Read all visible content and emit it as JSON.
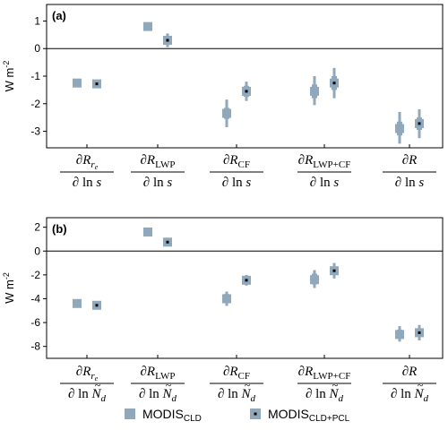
{
  "chart_data": [
    {
      "type": "scatter",
      "panel_label": "(a)",
      "ylabel": "W m",
      "ylabel_sup": "-2",
      "ylim": [
        -3.6,
        1.6
      ],
      "yticks": [
        1,
        0,
        -1,
        -2,
        -3
      ],
      "ytick_labels": [
        "1",
        "0",
        "-1",
        "-2",
        "-3"
      ],
      "zero_line": true,
      "categories": [
        {
          "num_sym": "∂R",
          "num_sub": "r",
          "num_sub2": "e",
          "den_pre": "∂ ln ",
          "den_var": "s",
          "den_tilde": false
        },
        {
          "num_sym": "∂R",
          "num_sub": "LWP",
          "num_sub2": "",
          "den_pre": "∂ ln ",
          "den_var": "s",
          "den_tilde": false
        },
        {
          "num_sym": "∂R",
          "num_sub": "CF",
          "num_sub2": "",
          "den_pre": "∂ ln ",
          "den_var": "s",
          "den_tilde": false
        },
        {
          "num_sym": "∂R",
          "num_sub": "LWP+CF",
          "num_sub2": "",
          "den_pre": "∂ ln ",
          "den_var": "s",
          "den_tilde": false
        },
        {
          "num_sym": "∂R",
          "num_sub": "",
          "num_sub2": "",
          "den_pre": "∂ ln ",
          "den_var": "s",
          "den_tilde": false
        }
      ],
      "series": [
        {
          "name": "MODIS_CLD",
          "values": [
            -1.25,
            0.8,
            -2.35,
            -1.55,
            -2.9
          ],
          "range_thick": [
            [
              -1.25,
              -1.25
            ],
            [
              0.8,
              0.8
            ],
            [
              -2.55,
              -2.15
            ],
            [
              -1.8,
              -1.3
            ],
            [
              -3.15,
              -2.65
            ]
          ],
          "range_thin": [
            [
              -1.25,
              -1.25
            ],
            [
              0.8,
              0.8
            ],
            [
              -2.85,
              -1.85
            ],
            [
              -2.05,
              -1.0
            ],
            [
              -3.45,
              -2.3
            ]
          ]
        },
        {
          "name": "MODIS_CLD+PCL",
          "values": [
            -1.28,
            0.3,
            -1.55,
            -1.25,
            -2.72
          ],
          "range_thick": [
            [
              -1.28,
              -1.28
            ],
            [
              0.15,
              0.45
            ],
            [
              -1.75,
              -1.35
            ],
            [
              -1.5,
              -1.0
            ],
            [
              -2.95,
              -2.5
            ]
          ],
          "range_thin": [
            [
              -1.28,
              -1.28
            ],
            [
              0.05,
              0.55
            ],
            [
              -1.9,
              -1.2
            ],
            [
              -1.8,
              -0.7
            ],
            [
              -3.25,
              -2.2
            ]
          ]
        }
      ]
    },
    {
      "type": "scatter",
      "panel_label": "(b)",
      "ylabel": "W m",
      "ylabel_sup": "-2",
      "ylim": [
        -9,
        2.8
      ],
      "yticks": [
        2,
        0,
        -2,
        -4,
        -6,
        -8
      ],
      "ytick_labels": [
        "2",
        "0",
        "-2",
        "-4",
        "-6",
        "-8"
      ],
      "zero_line": true,
      "categories": [
        {
          "num_sym": "∂R",
          "num_sub": "r",
          "num_sub2": "e",
          "den_pre": "∂ ln ",
          "den_var": "N",
          "den_sub": "d",
          "den_tilde": true
        },
        {
          "num_sym": "∂R",
          "num_sub": "LWP",
          "num_sub2": "",
          "den_pre": "∂ ln ",
          "den_var": "N",
          "den_sub": "d",
          "den_tilde": true
        },
        {
          "num_sym": "∂R",
          "num_sub": "CF",
          "num_sub2": "",
          "den_pre": "∂ ln ",
          "den_var": "N",
          "den_sub": "d",
          "den_tilde": true
        },
        {
          "num_sym": "∂R",
          "num_sub": "LWP+CF",
          "num_sub2": "",
          "den_pre": "∂ ln ",
          "den_var": "N",
          "den_sub": "d",
          "den_tilde": true
        },
        {
          "num_sym": "∂R",
          "num_sub": "",
          "num_sub2": "",
          "den_pre": "∂ ln ",
          "den_var": "N",
          "den_sub": "d",
          "den_tilde": true
        }
      ],
      "series": [
        {
          "name": "MODIS_CLD",
          "values": [
            -4.4,
            1.6,
            -4.0,
            -2.4,
            -7.0
          ],
          "range_thick": [
            [
              -4.4,
              -4.4
            ],
            [
              1.6,
              1.6
            ],
            [
              -4.3,
              -3.6
            ],
            [
              -2.8,
              -1.9
            ],
            [
              -7.3,
              -6.6
            ]
          ],
          "range_thin": [
            [
              -4.4,
              -4.4
            ],
            [
              1.6,
              1.6
            ],
            [
              -4.6,
              -3.4
            ],
            [
              -3.1,
              -1.6
            ],
            [
              -7.6,
              -6.3
            ]
          ]
        },
        {
          "name": "MODIS_CLD+PCL",
          "values": [
            -4.55,
            0.75,
            -2.45,
            -1.65,
            -6.85
          ],
          "range_thick": [
            [
              -4.55,
              -4.55
            ],
            [
              0.75,
              0.75
            ],
            [
              -2.7,
              -2.2
            ],
            [
              -2.0,
              -1.3
            ],
            [
              -7.15,
              -6.5
            ]
          ],
          "range_thin": [
            [
              -4.55,
              -4.55
            ],
            [
              0.75,
              0.75
            ],
            [
              -2.9,
              -2.0
            ],
            [
              -2.3,
              -1.0
            ],
            [
              -7.5,
              -6.2
            ]
          ]
        }
      ]
    }
  ],
  "legend": {
    "placement": "bottom-center",
    "items": [
      {
        "name": "MODIS",
        "sub": "CLD",
        "marker": "square"
      },
      {
        "name": "MODIS",
        "sub": "CLD+PCL",
        "marker": "square-dot"
      }
    ]
  },
  "colors": {
    "marker": "#8FA8BC",
    "center_dot": "#000000",
    "axis": "#000000"
  }
}
